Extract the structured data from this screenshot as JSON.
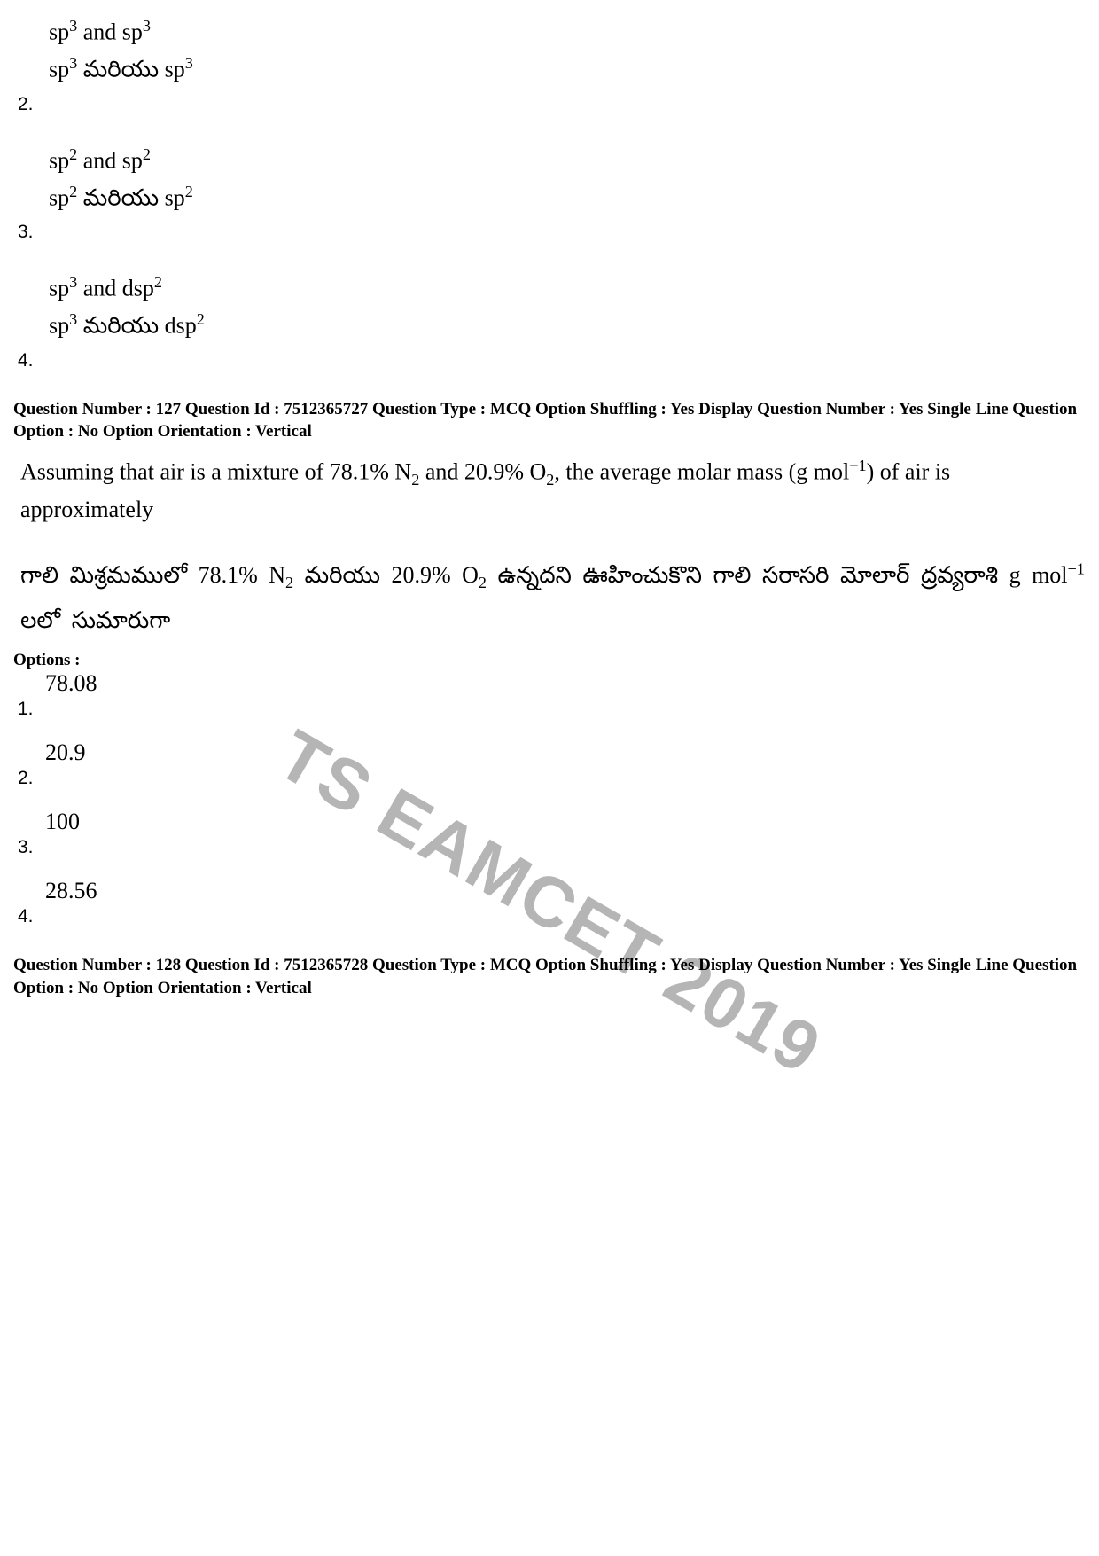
{
  "watermark": "TS EAMCET 2019",
  "prev_options": {
    "items": [
      {
        "num": "2.",
        "en_pre": "sp",
        "en_sup1": "3",
        "en_mid": " and sp",
        "en_sup2": "3",
        "te_pre": "sp",
        "te_sup1": "3",
        "te_mid": " మరియు sp",
        "te_sup2": "3"
      },
      {
        "num": "3.",
        "en_pre": "sp",
        "en_sup1": "2",
        "en_mid": " and sp",
        "en_sup2": "2",
        "te_pre": "sp",
        "te_sup1": "2",
        "te_mid": " మరియు sp",
        "te_sup2": "2"
      },
      {
        "num": "4.",
        "en_pre": "sp",
        "en_sup1": "3",
        "en_mid": " and dsp",
        "en_sup2": "2",
        "te_pre": "sp",
        "te_sup1": "3",
        "te_mid": " మరియు dsp",
        "te_sup2": "2"
      }
    ]
  },
  "q127": {
    "meta": "Question Number : 127  Question Id : 7512365727  Question Type : MCQ  Option Shuffling : Yes  Display Question Number : Yes Single Line Question Option : No  Option Orientation : Vertical",
    "en_part1": "Assuming that air is a mixture of 78.1% N",
    "en_sub1": "2",
    "en_part2": " and 20.9% O",
    "en_sub2": "2",
    "en_part3": ", the average molar mass (g mol",
    "en_sup1": "−1",
    "en_part4": ") of air is approximately",
    "te_part1": "గాలి మిశ్రమములో 78.1% N",
    "te_sub1": "2",
    "te_part2": " మరియు 20.9% O",
    "te_sub2": "2",
    "te_part3": " ఉన్నదని ఊహించుకొని గాలి సరాసరి మోలార్ ద్రవ్యరాశి g mol",
    "te_sup1": "−1",
    "te_part4": " లలో సుమారుగా",
    "options_label": "Options :",
    "options": [
      {
        "num": "1.",
        "val": "78.08"
      },
      {
        "num": "2.",
        "val": "20.9"
      },
      {
        "num": "3.",
        "val": "100"
      },
      {
        "num": "4.",
        "val": "28.56"
      }
    ]
  },
  "q128": {
    "meta": "Question Number : 128  Question Id : 7512365728  Question Type : MCQ  Option Shuffling : Yes  Display Question Number : Yes Single Line Question Option : No  Option Orientation : Vertical"
  }
}
